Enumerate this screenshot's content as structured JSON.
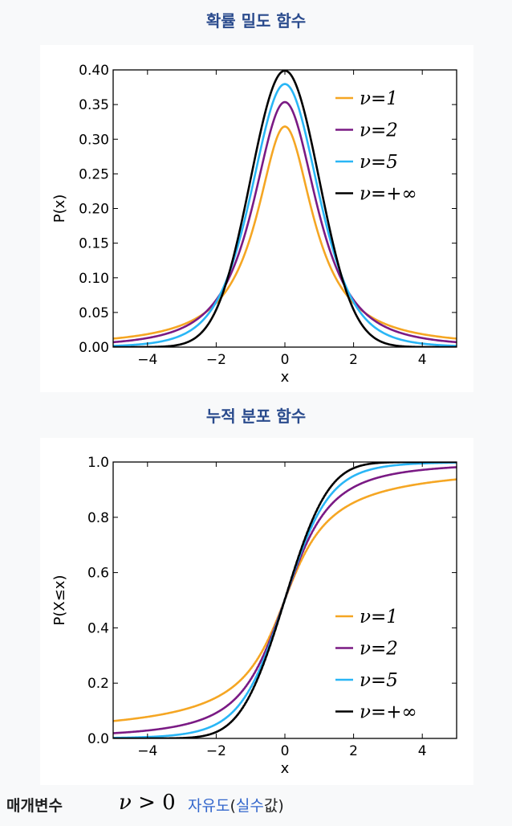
{
  "sections": {
    "pdf_title": "확률 밀도 함수",
    "cdf_title": "누적 분포 함수"
  },
  "parameters": {
    "label": "매개변수",
    "formula_var": "ν",
    "formula_rest": " > 0",
    "desc_link1": "자유도",
    "desc_paren_open": "(",
    "desc_link2": "실수",
    "desc_tail": "값)"
  },
  "colors": {
    "nu1": "#f5a623",
    "nu2": "#7a1a84",
    "nu5": "#29b6f6",
    "inf": "#000000"
  },
  "chart_data": [
    {
      "type": "line",
      "title": "확률 밀도 함수",
      "xlabel": "x",
      "ylabel": "P(x)",
      "xlim": [
        -5,
        5
      ],
      "ylim": [
        0,
        0.4
      ],
      "xticks": [
        -4,
        -2,
        0,
        2,
        4
      ],
      "xtick_labels": [
        "−4",
        "−2",
        "0",
        "2",
        "4"
      ],
      "yticks": [
        0.0,
        0.05,
        0.1,
        0.15,
        0.2,
        0.25,
        0.3,
        0.35,
        0.4
      ],
      "ytick_labels": [
        "0.00",
        "0.05",
        "0.10",
        "0.15",
        "0.20",
        "0.25",
        "0.30",
        "0.35",
        "0.40"
      ],
      "legend_position": "top-right",
      "x": [
        -5,
        -4,
        -3,
        -2,
        -1.5,
        -1,
        -0.5,
        0,
        0.5,
        1,
        1.5,
        2,
        3,
        4,
        5
      ],
      "series": [
        {
          "name": "ν=1",
          "color_key": "nu1",
          "values": [
            0.0122,
            0.0187,
            0.0318,
            0.0637,
            0.0979,
            0.1592,
            0.2546,
            0.3183,
            0.2546,
            0.1592,
            0.0979,
            0.0637,
            0.0318,
            0.0187,
            0.0122
          ]
        },
        {
          "name": "ν=2",
          "color_key": "nu2",
          "values": [
            0.0071,
            0.0131,
            0.0274,
            0.068,
            0.114,
            0.1925,
            0.2963,
            0.3536,
            0.2963,
            0.1925,
            0.114,
            0.068,
            0.0274,
            0.0131,
            0.0071
          ]
        },
        {
          "name": "ν=5",
          "color_key": "nu5",
          "values": [
            0.0018,
            0.0051,
            0.0173,
            0.0651,
            0.1245,
            0.2197,
            0.3279,
            0.3796,
            0.3279,
            0.2197,
            0.1245,
            0.0651,
            0.0173,
            0.0051,
            0.0018
          ]
        },
        {
          "name": "ν=+∞",
          "color_key": "inf",
          "values": [
            0.0,
            0.0001,
            0.0044,
            0.054,
            0.1295,
            0.242,
            0.3521,
            0.3989,
            0.3521,
            0.242,
            0.1295,
            0.054,
            0.0044,
            0.0001,
            0.0
          ]
        }
      ]
    },
    {
      "type": "line",
      "title": "누적 분포 함수",
      "xlabel": "x",
      "ylabel": "P(X≤x)",
      "xlim": [
        -5,
        5
      ],
      "ylim": [
        0,
        1
      ],
      "xticks": [
        -4,
        -2,
        0,
        2,
        4
      ],
      "xtick_labels": [
        "−4",
        "−2",
        "0",
        "2",
        "4"
      ],
      "yticks": [
        0.0,
        0.2,
        0.4,
        0.6,
        0.8,
        1.0
      ],
      "ytick_labels": [
        "0.0",
        "0.2",
        "0.4",
        "0.6",
        "0.8",
        "1.0"
      ],
      "legend_position": "lower-right",
      "x": [
        -5,
        -4,
        -3,
        -2,
        -1.5,
        -1,
        -0.5,
        0,
        0.5,
        1,
        1.5,
        2,
        3,
        4,
        5
      ],
      "series": [
        {
          "name": "ν=1",
          "color_key": "nu1",
          "values": [
            0.063,
            0.078,
            0.102,
            0.148,
            0.187,
            0.25,
            0.352,
            0.5,
            0.648,
            0.75,
            0.813,
            0.852,
            0.898,
            0.922,
            0.937
          ]
        },
        {
          "name": "ν=2",
          "color_key": "nu2",
          "values": [
            0.019,
            0.029,
            0.048,
            0.092,
            0.136,
            0.211,
            0.333,
            0.5,
            0.667,
            0.789,
            0.864,
            0.908,
            0.952,
            0.971,
            0.981
          ]
        },
        {
          "name": "ν=5",
          "color_key": "nu5",
          "values": [
            0.002,
            0.005,
            0.015,
            0.051,
            0.097,
            0.182,
            0.319,
            0.5,
            0.681,
            0.818,
            0.903,
            0.949,
            0.985,
            0.995,
            0.998
          ]
        },
        {
          "name": "ν=+∞",
          "color_key": "inf",
          "values": [
            0.0,
            0.0,
            0.001,
            0.023,
            0.067,
            0.159,
            0.309,
            0.5,
            0.691,
            0.841,
            0.933,
            0.977,
            0.999,
            1.0,
            1.0
          ]
        }
      ]
    }
  ]
}
